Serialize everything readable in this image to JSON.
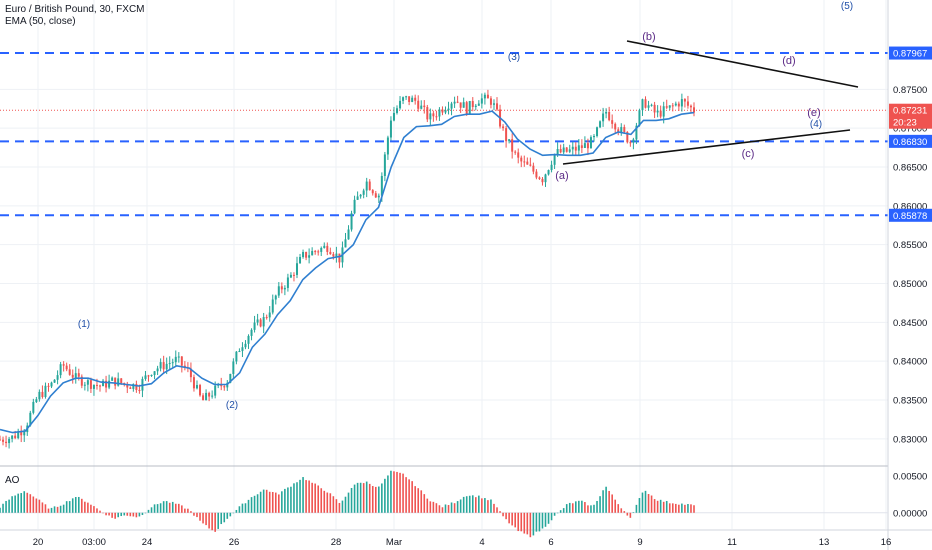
{
  "header": {
    "symbol_line": "Euro / British Pound, 30, FXCM",
    "indicator_line": "EMA (50, close)"
  },
  "colors": {
    "up": "#26a69a",
    "down": "#ef5350",
    "ema": "#2f7fd0",
    "level_line": "#2962ff",
    "last_price": "#ef5350",
    "wave_numbers": "#1f4fa8",
    "wave_letters": "#5b2a86",
    "triangle": "#111111",
    "grid": "#eef1f5"
  },
  "chart_data": [
    {
      "type": "candlestick",
      "symbol": "Euro / British Pound",
      "timeframe": "30",
      "source": "FXCM",
      "x_tick_labels": [
        "20",
        "03:00",
        "24",
        "26",
        "28",
        "Mar",
        "4",
        "6",
        "9",
        "11",
        "13",
        "16"
      ],
      "y_tick_labels": [
        "0.83000",
        "0.83500",
        "0.84000",
        "0.84500",
        "0.85000",
        "0.85500",
        "0.86000",
        "0.86500",
        "0.87000",
        "0.87500"
      ],
      "ylim": [
        0.8265,
        0.8865
      ],
      "grid": true,
      "approx_close_path": [
        0.8299,
        0.8302,
        0.8315,
        0.8355,
        0.8368,
        0.8395,
        0.8378,
        0.8372,
        0.8368,
        0.8375,
        0.837,
        0.8368,
        0.8388,
        0.8395,
        0.8402,
        0.8385,
        0.8348,
        0.8362,
        0.8375,
        0.8418,
        0.8442,
        0.8455,
        0.8488,
        0.8508,
        0.8535,
        0.8542,
        0.8548,
        0.853,
        0.8598,
        0.8632,
        0.8612,
        0.8715,
        0.8738,
        0.8735,
        0.8712,
        0.8725,
        0.8738,
        0.8725,
        0.8738,
        0.8735,
        0.869,
        0.866,
        0.8648,
        0.8635,
        0.8668,
        0.867,
        0.8675,
        0.8683,
        0.8722,
        0.87,
        0.8682,
        0.8735,
        0.8718,
        0.8725,
        0.8735,
        0.8723
      ],
      "ema_label": "EMA (50, close)",
      "ema_path": [
        0.8312,
        0.8308,
        0.831,
        0.833,
        0.8355,
        0.8372,
        0.8378,
        0.8378,
        0.8373,
        0.8372,
        0.837,
        0.8368,
        0.8371,
        0.8385,
        0.8394,
        0.8391,
        0.8378,
        0.837,
        0.837,
        0.8385,
        0.8418,
        0.8435,
        0.846,
        0.8478,
        0.8505,
        0.852,
        0.8532,
        0.8535,
        0.855,
        0.8582,
        0.8598,
        0.865,
        0.8688,
        0.8702,
        0.8703,
        0.8705,
        0.8715,
        0.8718,
        0.8718,
        0.8722,
        0.8708,
        0.8686,
        0.8673,
        0.8665,
        0.8666,
        0.8665,
        0.8665,
        0.8668,
        0.8688,
        0.8695,
        0.8692,
        0.871,
        0.871,
        0.8712,
        0.8718,
        0.872
      ],
      "horizontal_levels": [
        0.87967,
        0.8683,
        0.85878
      ],
      "last_price": 0.87231,
      "countdown": "20:23",
      "axis_price_labels": [
        "0.87967",
        "0.87231",
        "20:23",
        "0.86830",
        "0.85878"
      ],
      "wave_labels": [
        "(1)",
        "(2)",
        "(3)",
        "(a)",
        "(b)",
        "(c)",
        "(d)",
        "(e)",
        "(4)",
        "(5)"
      ]
    },
    {
      "type": "bar",
      "indicator": "AO",
      "y_tick_labels": [
        "0.00500",
        "0.00000"
      ],
      "ylim": [
        -0.0022,
        0.0062
      ],
      "values_path": [
        0.0008,
        0.0022,
        0.003,
        0.0018,
        0.0005,
        0.0012,
        0.0022,
        0.0014,
        0.0002,
        -0.0008,
        -0.0003,
        -0.0006,
        0.0008,
        0.0016,
        0.0012,
        0.0004,
        -0.0014,
        -0.0026,
        -0.0008,
        0.0008,
        0.0022,
        0.0032,
        0.0025,
        0.0036,
        0.0048,
        0.0038,
        0.0028,
        0.0012,
        0.0038,
        0.0042,
        0.0034,
        0.0056,
        0.0052,
        0.0036,
        0.0018,
        0.0008,
        0.0014,
        0.0024,
        0.0022,
        0.0016,
        -0.0008,
        -0.0024,
        -0.0032,
        -0.0022,
        -0.0004,
        0.0012,
        0.0016,
        0.0008,
        0.0036,
        0.0012,
        -0.0008,
        0.0032,
        0.0018,
        0.0014,
        0.0012,
        0.001
      ]
    }
  ]
}
